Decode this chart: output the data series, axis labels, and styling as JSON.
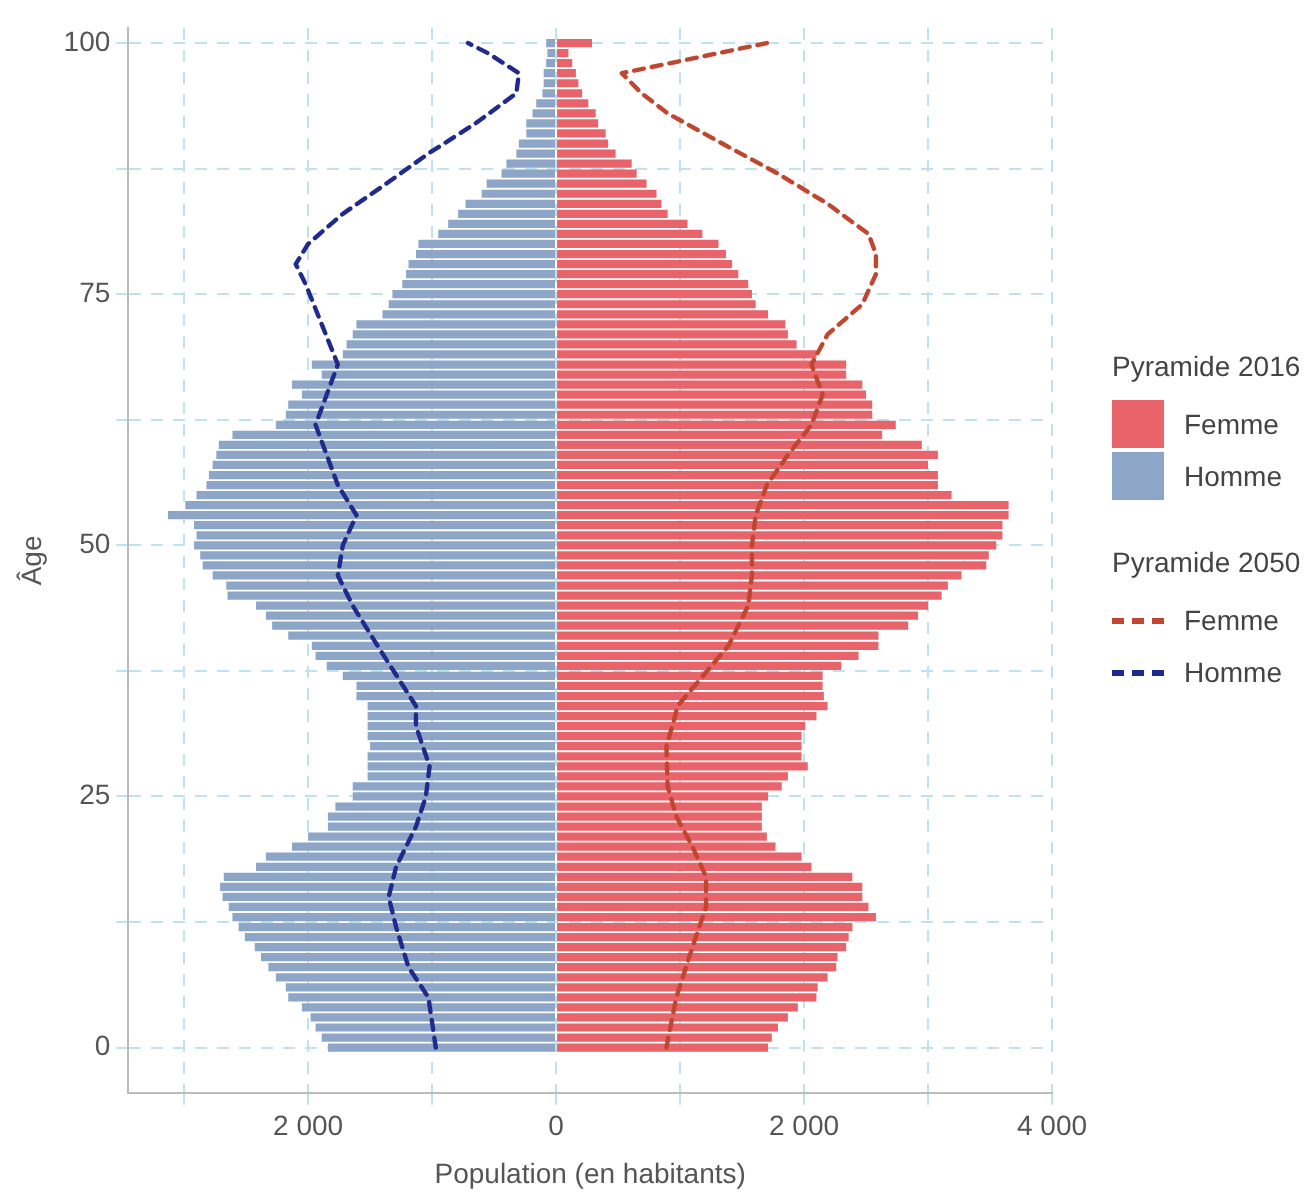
{
  "chart_data": {
    "type": "bar",
    "orientation": "horizontal",
    "stacked": true,
    "xlabel": "Population (en habitants)",
    "ylabel": "Âge",
    "legend_title": [
      "Pyramide 2016",
      "Pyramide 2050"
    ],
    "legend": "right",
    "grid": true,
    "line_style": "dashed",
    "xlim": [
      -3450,
      4000
    ],
    "xticks": [
      {
        "value": -3000,
        "label": null
      },
      {
        "value": -2000,
        "label": "2 000"
      },
      {
        "value": -1000,
        "label": null
      },
      0,
      {
        "value": 1000,
        "label": null
      },
      {
        "value": 2000,
        "label": "2 000"
      },
      {
        "value": 3000,
        "label": null
      },
      {
        "value": 4000,
        "label": "4 000"
      }
    ],
    "ylim": [
      -4.5,
      101.5
    ],
    "yticks": [
      0,
      {
        "value": 12.5,
        "label": null
      },
      25,
      {
        "value": 37.5,
        "label": null
      },
      50,
      {
        "value": 62.5,
        "label": null
      },
      75,
      {
        "value": 87.5,
        "label": null
      },
      100
    ],
    "x": [
      0,
      1,
      2,
      3,
      4,
      5,
      6,
      7,
      8,
      9,
      10,
      11,
      12,
      13,
      14,
      15,
      16,
      17,
      18,
      19,
      20,
      21,
      22,
      23,
      24,
      25,
      26,
      27,
      28,
      29,
      30,
      31,
      32,
      33,
      34,
      35,
      36,
      37,
      38,
      39,
      40,
      41,
      42,
      43,
      44,
      45,
      46,
      47,
      48,
      49,
      50,
      51,
      52,
      53,
      54,
      55,
      56,
      57,
      58,
      59,
      60,
      61,
      62,
      63,
      64,
      65,
      66,
      67,
      68,
      69,
      70,
      71,
      72,
      73,
      74,
      75,
      76,
      77,
      78,
      79,
      80,
      81,
      82,
      83,
      84,
      85,
      86,
      87,
      88,
      89,
      90,
      91,
      92,
      93,
      94,
      95,
      96,
      97,
      98,
      99,
      100
    ],
    "series": [
      {
        "name": "Femme",
        "color": "#e8636a",
        "values": [
          1710,
          1740,
          1790,
          1870,
          1950,
          2100,
          2110,
          2190,
          2260,
          2270,
          2340,
          2360,
          2390,
          2580,
          2520,
          2470,
          2470,
          2390,
          2060,
          1980,
          1770,
          1700,
          1660,
          1660,
          1660,
          1710,
          1820,
          1870,
          2030,
          1980,
          1980,
          1980,
          2010,
          2100,
          2190,
          2160,
          2150,
          2150,
          2300,
          2440,
          2600,
          2600,
          2840,
          2920,
          3000,
          3110,
          3160,
          3270,
          3470,
          3490,
          3550,
          3600,
          3600,
          3650,
          3650,
          3190,
          3080,
          3080,
          3000,
          3080,
          2950,
          2630,
          2740,
          2550,
          2550,
          2500,
          2470,
          2340,
          2340,
          2100,
          1940,
          1870,
          1850,
          1710,
          1610,
          1580,
          1550,
          1470,
          1420,
          1370,
          1310,
          1180,
          1060,
          900,
          850,
          810,
          730,
          650,
          610,
          480,
          420,
          400,
          340,
          320,
          260,
          210,
          180,
          160,
          130,
          100,
          290
        ]
      },
      {
        "name": "Homme",
        "color": "#8da6c8",
        "values": [
          -1840,
          -1890,
          -1940,
          -1980,
          -2050,
          -2160,
          -2180,
          -2260,
          -2320,
          -2380,
          -2430,
          -2510,
          -2560,
          -2610,
          -2640,
          -2690,
          -2710,
          -2680,
          -2420,
          -2340,
          -2130,
          -2000,
          -1840,
          -1840,
          -1780,
          -1640,
          -1640,
          -1520,
          -1520,
          -1520,
          -1500,
          -1520,
          -1520,
          -1520,
          -1520,
          -1610,
          -1610,
          -1720,
          -1850,
          -1940,
          -1970,
          -2160,
          -2290,
          -2340,
          -2420,
          -2650,
          -2660,
          -2770,
          -2850,
          -2870,
          -2920,
          -2900,
          -2920,
          -3130,
          -2990,
          -2900,
          -2820,
          -2800,
          -2770,
          -2740,
          -2720,
          -2610,
          -2260,
          -2180,
          -2160,
          -2050,
          -2130,
          -1890,
          -1970,
          -1720,
          -1690,
          -1640,
          -1610,
          -1400,
          -1350,
          -1320,
          -1240,
          -1210,
          -1190,
          -1130,
          -1110,
          -950,
          -870,
          -790,
          -730,
          -600,
          -560,
          -440,
          -400,
          -320,
          -300,
          -240,
          -240,
          -190,
          -160,
          -110,
          -100,
          -100,
          -80,
          -70,
          -80
        ]
      },
      {
        "name": "Femme",
        "type": "line",
        "color": "#c0462f",
        "x": [
          0,
          5,
          10,
          14,
          17,
          20,
          23,
          26,
          30,
          33,
          34,
          40,
          44,
          47,
          50,
          53,
          56,
          59,
          62,
          65,
          68,
          71,
          74,
          77,
          79,
          81,
          84,
          87,
          90,
          93,
          95,
          97,
          100
        ],
        "values": [
          890,
          970,
          1100,
          1210,
          1210,
          1100,
          970,
          900,
          890,
          960,
          980,
          1390,
          1550,
          1580,
          1580,
          1610,
          1700,
          1870,
          2060,
          2150,
          2060,
          2190,
          2470,
          2580,
          2580,
          2520,
          2190,
          1790,
          1340,
          900,
          690,
          530,
          1700
        ]
      },
      {
        "name": "Homme",
        "type": "line",
        "color": "#1f2a8c",
        "x": [
          0,
          5,
          8,
          12,
          15,
          18,
          22,
          25,
          28,
          32,
          34,
          40,
          44,
          47,
          50,
          53,
          56,
          59,
          62,
          65,
          68,
          72,
          76,
          78,
          80,
          83,
          86,
          89,
          92,
          95,
          97,
          99,
          100
        ],
        "values": [
          -970,
          -1030,
          -1190,
          -1290,
          -1350,
          -1290,
          -1130,
          -1050,
          -1020,
          -1130,
          -1130,
          -1440,
          -1640,
          -1760,
          -1720,
          -1610,
          -1760,
          -1850,
          -1940,
          -1850,
          -1760,
          -1890,
          -2020,
          -2100,
          -2000,
          -1720,
          -1370,
          -1030,
          -650,
          -320,
          -300,
          -550,
          -710
        ]
      }
    ]
  }
}
